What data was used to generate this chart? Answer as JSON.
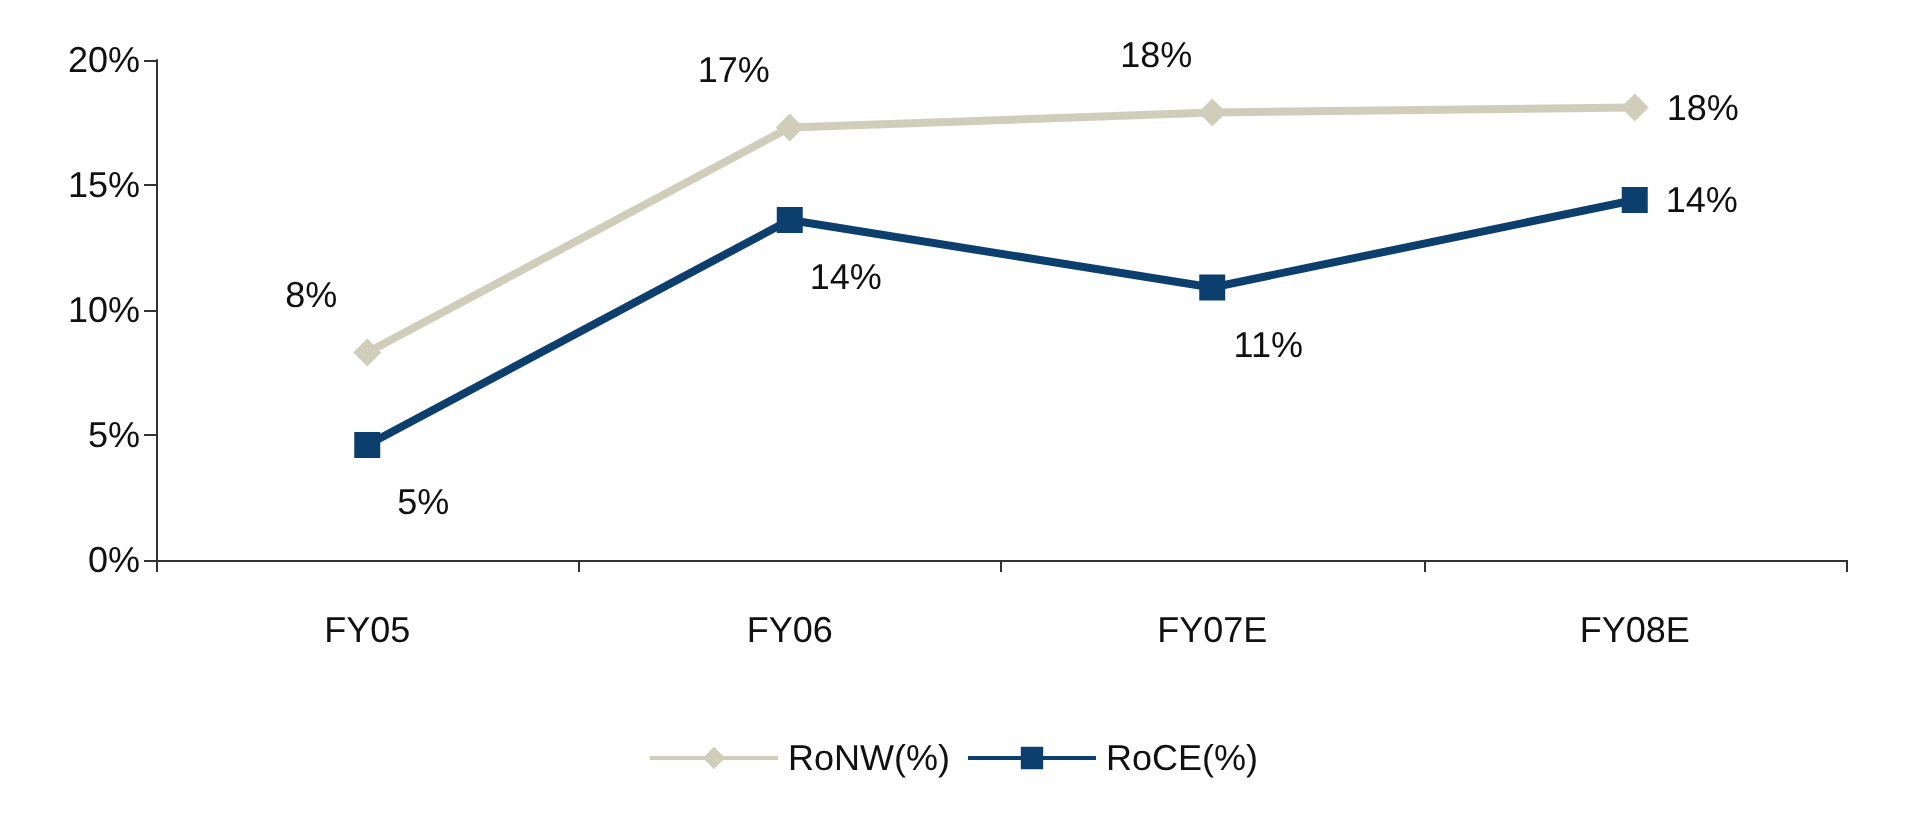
{
  "chart_data": {
    "type": "line",
    "categories": [
      "FY05",
      "FY06",
      "FY07E",
      "FY08E"
    ],
    "series": [
      {
        "name": "RoNW(%)",
        "color": "#d0cebb",
        "marker": "diamond",
        "values": [
          8.3,
          17.3,
          17.9,
          18.1
        ],
        "value_labels": [
          "8%",
          "17%",
          "18%",
          "18%"
        ]
      },
      {
        "name": "RoCE(%)",
        "color": "#0d3f6e",
        "marker": "square",
        "values": [
          4.6,
          13.6,
          10.9,
          14.4
        ],
        "value_labels": [
          "5%",
          "14%",
          "11%",
          "14%"
        ]
      }
    ],
    "ylim": [
      0,
      20
    ],
    "yticks": [
      {
        "value": 0,
        "label": "0%"
      },
      {
        "value": 5,
        "label": "5%"
      },
      {
        "value": 10,
        "label": "10%"
      },
      {
        "value": 15,
        "label": "15%"
      },
      {
        "value": 20,
        "label": "20%"
      }
    ],
    "grid": false,
    "legend": "bottom",
    "line_style": "solid"
  }
}
